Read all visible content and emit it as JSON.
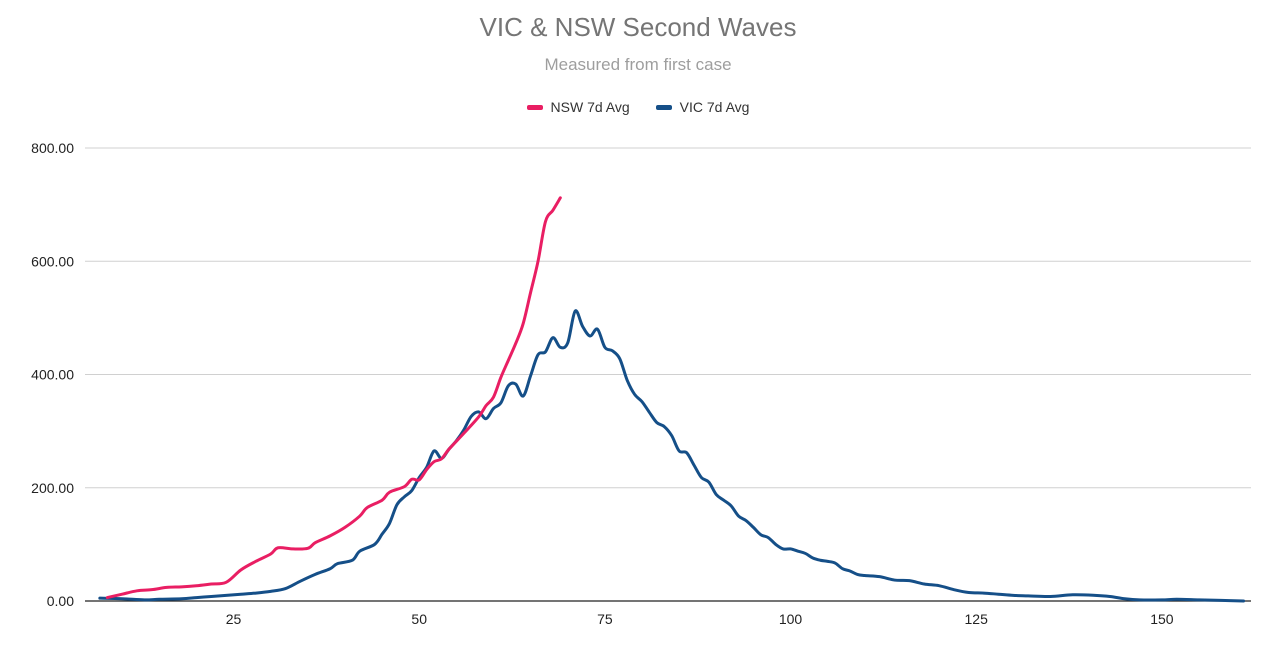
{
  "chart_data": {
    "type": "line",
    "title": "VIC & NSW Second Waves",
    "subtitle": "Measured from first case",
    "xlabel": "",
    "ylabel": "",
    "xlim": [
      5,
      162
    ],
    "ylim": [
      0,
      800
    ],
    "xticks": [
      25,
      50,
      75,
      100,
      125,
      150
    ],
    "yticks": [
      0,
      200,
      400,
      600,
      800
    ],
    "ytick_labels": [
      "0.00",
      "200.00",
      "400.00",
      "600.00",
      "800.00"
    ],
    "grid": true,
    "legend_position": "top",
    "series": [
      {
        "name": "NSW 7d Avg",
        "color": "#e91e63",
        "points": [
          [
            8,
            6
          ],
          [
            10,
            12
          ],
          [
            12,
            18
          ],
          [
            14,
            20
          ],
          [
            16,
            24
          ],
          [
            18,
            25
          ],
          [
            20,
            27
          ],
          [
            22,
            30
          ],
          [
            24,
            33
          ],
          [
            26,
            55
          ],
          [
            28,
            70
          ],
          [
            30,
            83
          ],
          [
            31,
            94
          ],
          [
            33,
            92
          ],
          [
            35,
            93
          ],
          [
            36,
            103
          ],
          [
            38,
            115
          ],
          [
            40,
            130
          ],
          [
            42,
            150
          ],
          [
            43,
            165
          ],
          [
            45,
            178
          ],
          [
            46,
            192
          ],
          [
            48,
            202
          ],
          [
            49,
            215
          ],
          [
            50,
            214
          ],
          [
            51,
            232
          ],
          [
            52,
            246
          ],
          [
            53,
            251
          ],
          [
            54,
            268
          ],
          [
            56,
            296
          ],
          [
            58,
            325
          ],
          [
            59,
            345
          ],
          [
            60,
            360
          ],
          [
            61,
            395
          ],
          [
            62,
            425
          ],
          [
            63,
            455
          ],
          [
            64,
            490
          ],
          [
            65,
            545
          ],
          [
            66,
            600
          ],
          [
            67,
            670
          ],
          [
            68,
            690
          ],
          [
            69,
            712
          ]
        ]
      },
      {
        "name": "VIC 7d Avg",
        "color": "#154f88",
        "points": [
          [
            7,
            5
          ],
          [
            10,
            4
          ],
          [
            13,
            2
          ],
          [
            15,
            3
          ],
          [
            18,
            4
          ],
          [
            20,
            6
          ],
          [
            22,
            8
          ],
          [
            24,
            10
          ],
          [
            26,
            12
          ],
          [
            28,
            14
          ],
          [
            30,
            17
          ],
          [
            32,
            22
          ],
          [
            34,
            35
          ],
          [
            36,
            47
          ],
          [
            38,
            57
          ],
          [
            39,
            66
          ],
          [
            41,
            72
          ],
          [
            42,
            88
          ],
          [
            44,
            100
          ],
          [
            45,
            118
          ],
          [
            46,
            137
          ],
          [
            47,
            170
          ],
          [
            48,
            184
          ],
          [
            49,
            195
          ],
          [
            50,
            218
          ],
          [
            51,
            236
          ],
          [
            52,
            265
          ],
          [
            53,
            252
          ],
          [
            54,
            268
          ],
          [
            55,
            283
          ],
          [
            56,
            302
          ],
          [
            57,
            326
          ],
          [
            58,
            334
          ],
          [
            59,
            322
          ],
          [
            60,
            340
          ],
          [
            61,
            350
          ],
          [
            62,
            380
          ],
          [
            63,
            383
          ],
          [
            64,
            362
          ],
          [
            65,
            398
          ],
          [
            66,
            435
          ],
          [
            67,
            440
          ],
          [
            68,
            465
          ],
          [
            69,
            448
          ],
          [
            70,
            456
          ],
          [
            71,
            512
          ],
          [
            72,
            485
          ],
          [
            73,
            468
          ],
          [
            74,
            480
          ],
          [
            75,
            448
          ],
          [
            76,
            442
          ],
          [
            77,
            428
          ],
          [
            78,
            390
          ],
          [
            79,
            365
          ],
          [
            80,
            352
          ],
          [
            81,
            333
          ],
          [
            82,
            315
          ],
          [
            83,
            308
          ],
          [
            84,
            292
          ],
          [
            85,
            265
          ],
          [
            86,
            262
          ],
          [
            87,
            240
          ],
          [
            88,
            218
          ],
          [
            89,
            210
          ],
          [
            90,
            188
          ],
          [
            91,
            178
          ],
          [
            92,
            168
          ],
          [
            93,
            150
          ],
          [
            94,
            142
          ],
          [
            95,
            130
          ],
          [
            96,
            117
          ],
          [
            97,
            112
          ],
          [
            98,
            100
          ],
          [
            99,
            92
          ],
          [
            100,
            92
          ],
          [
            101,
            88
          ],
          [
            102,
            84
          ],
          [
            103,
            76
          ],
          [
            104,
            72
          ],
          [
            105,
            70
          ],
          [
            106,
            67
          ],
          [
            107,
            57
          ],
          [
            108,
            53
          ],
          [
            109,
            47
          ],
          [
            110,
            45
          ],
          [
            112,
            43
          ],
          [
            114,
            37
          ],
          [
            116,
            36
          ],
          [
            118,
            30
          ],
          [
            120,
            27
          ],
          [
            122,
            20
          ],
          [
            124,
            15
          ],
          [
            126,
            14
          ],
          [
            128,
            12
          ],
          [
            130,
            10
          ],
          [
            132,
            9
          ],
          [
            135,
            8
          ],
          [
            138,
            11
          ],
          [
            141,
            10
          ],
          [
            143,
            8
          ],
          [
            145,
            4
          ],
          [
            147,
            2
          ],
          [
            150,
            2
          ],
          [
            152,
            3
          ],
          [
            155,
            2
          ],
          [
            158,
            1
          ],
          [
            161,
            0
          ]
        ]
      }
    ]
  }
}
